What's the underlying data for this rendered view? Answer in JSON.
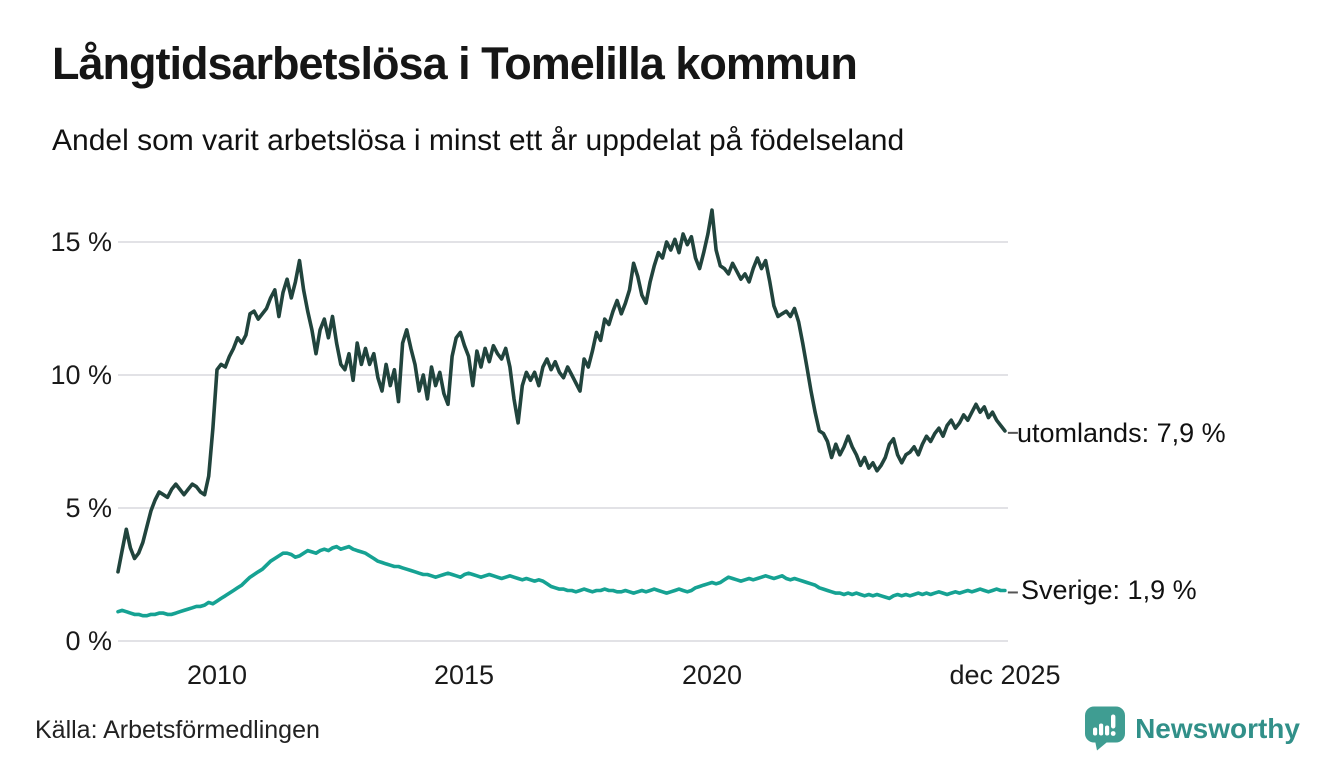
{
  "header": {
    "title": "Långtidsarbetslösa i Tomelilla kommun",
    "subtitle": "Andel som varit arbetslösa i minst ett år uppdelat på födelseland"
  },
  "footer": {
    "source": "Källa: Arbetsförmedlingen",
    "brand": "Newsworthy"
  },
  "axes": {
    "y_ticks": [
      "15 %",
      "10 %",
      "5 %",
      "0 %"
    ],
    "x_ticks": [
      "2010",
      "2015",
      "2020",
      "dec 2025"
    ]
  },
  "colors": {
    "utomlands_line": "#21443d",
    "sverige_line": "#16a293",
    "grid": "#e2e2e6",
    "leader_dash": "#555555",
    "brand_teal": "#3f9d92",
    "brand_text": "#319089"
  },
  "chart_data": {
    "type": "line",
    "title": "Långtidsarbetslösa i Tomelilla kommun",
    "subtitle": "Andel som varit arbetslösa i minst ett år uppdelat på födelseland",
    "source": "Källa: Arbetsförmedlingen",
    "x_axis": "time, monthly from 2008-01 to 2025-12",
    "x_start": 2008.0,
    "x_step_years": 0.0833333,
    "xlim": [
      2008,
      2026.2
    ],
    "ylim": [
      0,
      17
    ],
    "ylabel": "",
    "xlabel": "",
    "grid": true,
    "y_tick_values": [
      0,
      5,
      10,
      15
    ],
    "y_tick_labels": [
      "0 %",
      "5 %",
      "10 %",
      "15 %"
    ],
    "x_tick_values": [
      2010,
      2015,
      2020,
      2025.917
    ],
    "x_tick_labels": [
      "2010",
      "2015",
      "2020",
      "dec 2025"
    ],
    "legend_position": "end-of-line labels at right",
    "series": [
      {
        "name": "utomlands",
        "label": "utomlands: 7,9 %",
        "last_value": 7.9,
        "color": "#21443d",
        "values": [
          2.6,
          3.4,
          4.2,
          3.5,
          3.1,
          3.3,
          3.7,
          4.3,
          4.9,
          5.3,
          5.6,
          5.5,
          5.4,
          5.7,
          5.9,
          5.7,
          5.5,
          5.7,
          5.9,
          5.8,
          5.6,
          5.5,
          6.2,
          8.0,
          10.2,
          10.4,
          10.3,
          10.7,
          11.0,
          11.4,
          11.2,
          11.5,
          12.3,
          12.4,
          12.1,
          12.3,
          12.5,
          12.9,
          13.2,
          12.2,
          13.1,
          13.6,
          12.9,
          13.5,
          14.3,
          13.2,
          12.4,
          11.7,
          10.8,
          11.7,
          12.1,
          11.4,
          12.2,
          11.2,
          10.4,
          10.2,
          10.8,
          9.8,
          11.2,
          10.4,
          11.0,
          10.4,
          10.8,
          9.9,
          9.4,
          10.4,
          9.6,
          10.2,
          9.0,
          11.2,
          11.7,
          11.0,
          10.4,
          9.4,
          10.0,
          9.1,
          10.3,
          9.6,
          10.1,
          9.3,
          8.9,
          10.7,
          11.4,
          11.6,
          11.1,
          10.7,
          9.6,
          10.9,
          10.3,
          11.0,
          10.5,
          11.1,
          10.8,
          10.6,
          11.0,
          10.3,
          9.1,
          8.2,
          9.6,
          10.1,
          9.8,
          10.1,
          9.6,
          10.3,
          10.6,
          10.2,
          10.5,
          10.1,
          9.9,
          10.3,
          10.0,
          9.7,
          9.4,
          10.6,
          10.3,
          10.9,
          11.6,
          11.3,
          12.1,
          11.9,
          12.4,
          12.8,
          12.3,
          12.7,
          13.2,
          14.2,
          13.7,
          13.0,
          12.7,
          13.5,
          14.1,
          14.6,
          14.4,
          15.0,
          14.7,
          15.1,
          14.6,
          15.3,
          14.9,
          15.2,
          14.4,
          14.0,
          14.6,
          15.3,
          16.2,
          14.7,
          14.1,
          14.0,
          13.8,
          14.2,
          13.9,
          13.6,
          13.8,
          13.5,
          14.0,
          14.4,
          14.0,
          14.3,
          13.5,
          12.6,
          12.2,
          12.3,
          12.4,
          12.2,
          12.5,
          12.0,
          11.2,
          10.3,
          9.4,
          8.6,
          7.9,
          7.8,
          7.5,
          6.9,
          7.4,
          7.0,
          7.3,
          7.7,
          7.3,
          7.0,
          6.6,
          6.9,
          6.5,
          6.7,
          6.4,
          6.6,
          6.9,
          7.4,
          7.6,
          7.0,
          6.7,
          7.0,
          7.1,
          7.3,
          7.0,
          7.4,
          7.7,
          7.5,
          7.8,
          8.0,
          7.7,
          8.1,
          8.3,
          8.0,
          8.2,
          8.5,
          8.3,
          8.6,
          8.9,
          8.6,
          8.8,
          8.4,
          8.6,
          8.3,
          8.1,
          7.9
        ]
      },
      {
        "name": "Sverige",
        "label": "Sverige: 1,9 %",
        "last_value": 1.9,
        "color": "#16a293",
        "values": [
          1.1,
          1.15,
          1.1,
          1.05,
          1.0,
          1.0,
          0.95,
          0.95,
          1.0,
          1.0,
          1.05,
          1.05,
          1.0,
          1.0,
          1.05,
          1.1,
          1.15,
          1.2,
          1.25,
          1.3,
          1.3,
          1.35,
          1.45,
          1.4,
          1.5,
          1.6,
          1.7,
          1.8,
          1.9,
          2.0,
          2.1,
          2.25,
          2.4,
          2.5,
          2.6,
          2.7,
          2.85,
          3.0,
          3.1,
          3.2,
          3.3,
          3.3,
          3.25,
          3.15,
          3.2,
          3.3,
          3.4,
          3.35,
          3.3,
          3.4,
          3.45,
          3.4,
          3.5,
          3.55,
          3.45,
          3.5,
          3.55,
          3.45,
          3.4,
          3.35,
          3.3,
          3.2,
          3.1,
          3.0,
          2.95,
          2.9,
          2.85,
          2.8,
          2.8,
          2.75,
          2.7,
          2.65,
          2.6,
          2.55,
          2.5,
          2.5,
          2.45,
          2.4,
          2.45,
          2.5,
          2.55,
          2.5,
          2.45,
          2.4,
          2.5,
          2.55,
          2.5,
          2.45,
          2.4,
          2.45,
          2.5,
          2.45,
          2.4,
          2.35,
          2.4,
          2.45,
          2.4,
          2.35,
          2.3,
          2.35,
          2.3,
          2.25,
          2.3,
          2.25,
          2.15,
          2.05,
          2.0,
          1.95,
          1.95,
          1.9,
          1.9,
          1.85,
          1.9,
          1.95,
          1.9,
          1.85,
          1.9,
          1.9,
          1.95,
          1.9,
          1.9,
          1.85,
          1.85,
          1.9,
          1.85,
          1.8,
          1.85,
          1.9,
          1.85,
          1.9,
          1.95,
          1.9,
          1.85,
          1.8,
          1.85,
          1.9,
          1.95,
          1.9,
          1.85,
          1.9,
          2.0,
          2.05,
          2.1,
          2.15,
          2.2,
          2.15,
          2.2,
          2.3,
          2.4,
          2.35,
          2.3,
          2.25,
          2.3,
          2.35,
          2.3,
          2.35,
          2.4,
          2.45,
          2.4,
          2.35,
          2.4,
          2.45,
          2.35,
          2.3,
          2.35,
          2.3,
          2.25,
          2.2,
          2.15,
          2.1,
          2.0,
          1.95,
          1.9,
          1.85,
          1.8,
          1.8,
          1.75,
          1.8,
          1.75,
          1.8,
          1.75,
          1.7,
          1.75,
          1.7,
          1.75,
          1.7,
          1.65,
          1.6,
          1.7,
          1.75,
          1.7,
          1.75,
          1.7,
          1.75,
          1.8,
          1.75,
          1.8,
          1.75,
          1.8,
          1.85,
          1.8,
          1.75,
          1.8,
          1.85,
          1.8,
          1.85,
          1.9,
          1.85,
          1.9,
          1.95,
          1.9,
          1.85,
          1.9,
          1.95,
          1.9,
          1.9
        ]
      }
    ]
  }
}
